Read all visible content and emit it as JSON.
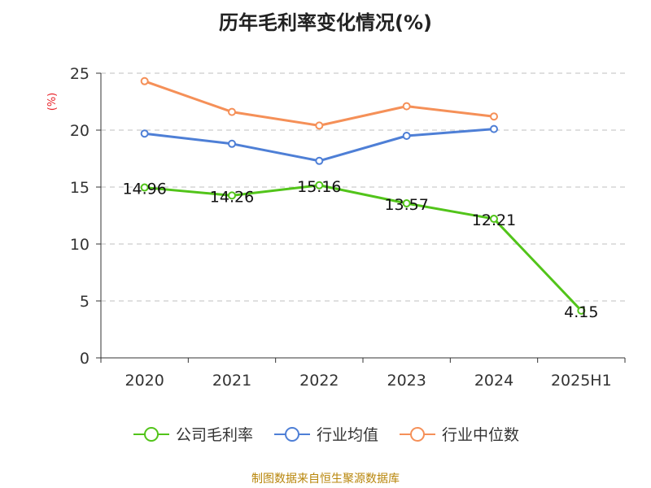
{
  "chart_data": {
    "type": "line",
    "title": "历年毛利率变化情况(%)",
    "ylabel": "(%)",
    "categories": [
      "2020",
      "2021",
      "2022",
      "2023",
      "2024",
      "2025H1"
    ],
    "ylim": [
      0,
      25
    ],
    "yticks": [
      0,
      5,
      10,
      15,
      20,
      25
    ],
    "grid": true,
    "legend_position": "bottom",
    "series": [
      {
        "name": "公司毛利率",
        "color": "#52c41a",
        "values": [
          14.96,
          14.26,
          15.16,
          13.57,
          12.21,
          4.15
        ],
        "labels": [
          "14.96",
          "14.26",
          "15.16",
          "13.57",
          "12.21",
          "4.15"
        ]
      },
      {
        "name": "行业均值",
        "color": "#4e7fd6",
        "values": [
          19.7,
          18.8,
          17.3,
          19.5,
          20.1,
          null
        ]
      },
      {
        "name": "行业中位数",
        "color": "#f59058",
        "values": [
          24.3,
          21.6,
          20.4,
          22.1,
          21.2,
          null
        ]
      }
    ]
  },
  "footer": "制图数据来自恒生聚源数据库"
}
